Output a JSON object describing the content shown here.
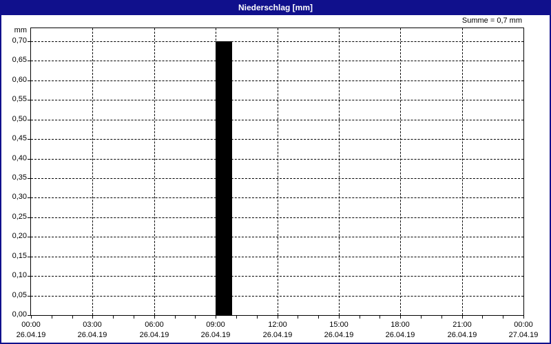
{
  "title_bar": {
    "title": "Niederschlag [mm]"
  },
  "summary": {
    "text": "Summe = 0,7 mm"
  },
  "colors": {
    "frame": "#10108c",
    "title_bg": "#10108c",
    "title_text": "#ffffff",
    "bar": "#000000",
    "grid": "#000000",
    "background": "#ffffff"
  },
  "chart_data": {
    "type": "bar",
    "title": "Niederschlag [mm]",
    "ylabel_unit": "mm",
    "sum_text": "Summe = 0,7 mm",
    "grid": "dashed",
    "legend": "none",
    "ylim": [
      0,
      0.7333
    ],
    "xlim_hours": [
      0,
      24
    ],
    "minor_tick_hours": 1,
    "y_ticks": [
      {
        "value": 0.0,
        "label": "0,00"
      },
      {
        "value": 0.05,
        "label": "0,05"
      },
      {
        "value": 0.1,
        "label": "0,10"
      },
      {
        "value": 0.15,
        "label": "0,15"
      },
      {
        "value": 0.2,
        "label": "0,20"
      },
      {
        "value": 0.25,
        "label": "0,25"
      },
      {
        "value": 0.3,
        "label": "0,30"
      },
      {
        "value": 0.35,
        "label": "0,35"
      },
      {
        "value": 0.4,
        "label": "0,40"
      },
      {
        "value": 0.45,
        "label": "0,45"
      },
      {
        "value": 0.5,
        "label": "0,50"
      },
      {
        "value": 0.55,
        "label": "0,55"
      },
      {
        "value": 0.6,
        "label": "0,60"
      },
      {
        "value": 0.65,
        "label": "0,65"
      },
      {
        "value": 0.7,
        "label": "0,70"
      }
    ],
    "x_ticks": [
      {
        "hour": 0,
        "time": "00:00",
        "date": "26.04.19"
      },
      {
        "hour": 3,
        "time": "03:00",
        "date": "26.04.19"
      },
      {
        "hour": 6,
        "time": "06:00",
        "date": "26.04.19"
      },
      {
        "hour": 9,
        "time": "09:00",
        "date": "26.04.19"
      },
      {
        "hour": 12,
        "time": "12:00",
        "date": "26.04.19"
      },
      {
        "hour": 15,
        "time": "15:00",
        "date": "26.04.19"
      },
      {
        "hour": 18,
        "time": "18:00",
        "date": "26.04.19"
      },
      {
        "hour": 21,
        "time": "21:00",
        "date": "26.04.19"
      },
      {
        "hour": 24,
        "time": "00:00",
        "date": "27.04.19"
      }
    ],
    "bars": [
      {
        "start_hour": 9.0,
        "end_hour": 9.8,
        "value_mm": 0.7,
        "time": "09:00",
        "date": "26.04.19"
      }
    ]
  }
}
